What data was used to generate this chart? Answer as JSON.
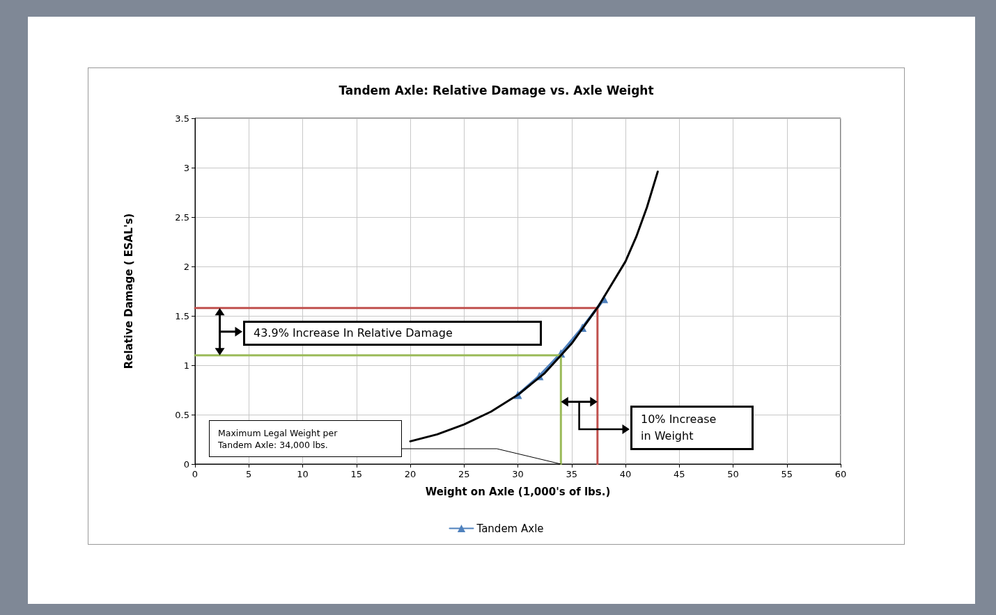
{
  "chart_data": {
    "type": "line",
    "title": "Tandem Axle: Relative Damage vs. Axle Weight",
    "xlabel": "Weight on Axle (1,000's of lbs.)",
    "ylabel": "Relative Damage ( ESAL's)",
    "xlim": [
      0,
      60
    ],
    "xticks": [
      0,
      5,
      10,
      15,
      20,
      25,
      30,
      35,
      40,
      45,
      50,
      55,
      60
    ],
    "ylim": [
      0,
      3.5
    ],
    "yticks": [
      0,
      0.5,
      1,
      1.5,
      2,
      2.5,
      3,
      3.5
    ],
    "grid": true,
    "legend": "bottom",
    "marker": "triangle",
    "series": [
      {
        "name": "Tandem Axle",
        "color": "#4f81bd",
        "x": [
          30,
          32,
          34,
          36,
          38
        ],
        "values": [
          0.7,
          0.89,
          1.12,
          1.38,
          1.67
        ]
      },
      {
        "color": "#000000",
        "marker": "none",
        "x": [
          20,
          22.5,
          25,
          27.5,
          30,
          32.5,
          35,
          37.5,
          40,
          41,
          42,
          43
        ],
        "values": [
          0.23,
          0.3,
          0.4,
          0.53,
          0.7,
          0.92,
          1.22,
          1.6,
          2.05,
          2.3,
          2.6,
          2.96
        ]
      },
      {
        "color": "#9bbb59",
        "marker": "none",
        "x": [
          0,
          34,
          34
        ],
        "values": [
          1.1,
          1.1,
          0
        ]
      },
      {
        "color": "#c0504d",
        "marker": "none",
        "x": [
          0,
          37.4,
          37.4
        ],
        "values": [
          1.58,
          1.58,
          0
        ]
      }
    ],
    "annotations": [
      "43.9% Increase In Relative Damage",
      "10% Increase\nin Weight",
      "Maximum Legal Weight per\nTandem Axle: 34,000 lbs."
    ]
  }
}
